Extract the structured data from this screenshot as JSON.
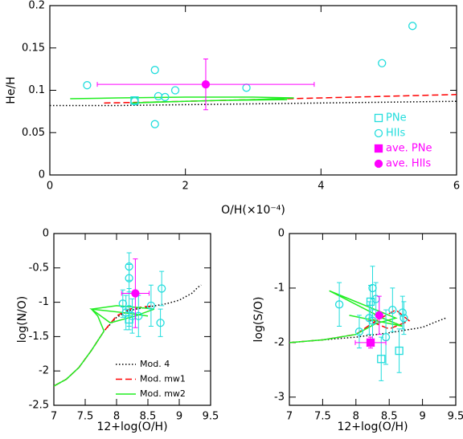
{
  "chart_data": [
    {
      "type": "scatter",
      "xlabel": "O/H(×10⁻⁴)",
      "ylabel": "He/H",
      "xlim": [
        0,
        6
      ],
      "ylim": [
        0,
        0.2
      ],
      "xticks": [
        0,
        2,
        4,
        6
      ],
      "yticks": [
        0,
        0.05,
        0.1,
        0.15,
        0.2
      ],
      "legend": "lower right",
      "series": [
        {
          "color": "#000000",
          "marker": "line",
          "dash": "dotted",
          "x": [
            0,
            1,
            2,
            3,
            4,
            5,
            6
          ],
          "y": [
            0.082,
            0.082,
            0.083,
            0.084,
            0.085,
            0.086,
            0.087
          ]
        },
        {
          "color": "#ff0000",
          "marker": "line",
          "dash": "dashed",
          "x": [
            0.8,
            1.5,
            2.5,
            3.5,
            4.5,
            5.5,
            6
          ],
          "y": [
            0.085,
            0.086,
            0.088,
            0.09,
            0.092,
            0.094,
            0.095
          ]
        },
        {
          "color": "#22ee22",
          "marker": "line",
          "dash": "solid",
          "x": [
            0.3,
            1,
            2,
            3,
            3.6,
            3,
            2,
            1.2,
            1.5,
            2.5,
            3.5
          ],
          "y": [
            0.09,
            0.091,
            0.092,
            0.092,
            0.091,
            0.089,
            0.087,
            0.085,
            0.086,
            0.088,
            0.089
          ]
        },
        {
          "name": "PNe",
          "color": "#22dddd",
          "marker": "square",
          "x": [
            1.25
          ],
          "y": [
            0.088
          ]
        },
        {
          "name": "HIIs",
          "color": "#22dddd",
          "marker": "circle",
          "x": [
            0.55,
            1.25,
            1.55,
            1.55,
            1.6,
            1.7,
            1.85,
            2.9,
            4.9,
            5.35
          ],
          "y": [
            0.106,
            0.087,
            0.124,
            0.06,
            0.093,
            0.092,
            0.1,
            0.103,
            0.132,
            0.176
          ]
        },
        {
          "name": "ave. PNe",
          "color": "#ff00ff",
          "marker": "filled-square",
          "x": [],
          "y": []
        },
        {
          "name": "ave. HIIs",
          "color": "#ff00ff",
          "marker": "filled-circle",
          "x": [
            2.3
          ],
          "y": [
            0.107
          ],
          "xerr": [
            1.6
          ],
          "yerr": [
            0.03
          ]
        }
      ]
    },
    {
      "type": "scatter",
      "xlabel": "12+log(O/H)",
      "ylabel": "log(N/O)",
      "xlim": [
        7,
        9.5
      ],
      "ylim": [
        -2.5,
        0
      ],
      "xticks": [
        7,
        7.5,
        8,
        8.5,
        9,
        9.5
      ],
      "yticks": [
        0,
        -0.5,
        -1,
        -1.5,
        -2,
        -2.5
      ],
      "legend": "lower right",
      "series": [
        {
          "name": "Mod. 4",
          "color": "#000000",
          "marker": "line",
          "dash": "dotted",
          "x": [
            7,
            7.2,
            7.4,
            7.6,
            7.8,
            8,
            8.2,
            8.5,
            8.8,
            9,
            9.2,
            9.3,
            9.35
          ],
          "y": [
            -2.22,
            -2.12,
            -1.95,
            -1.7,
            -1.42,
            -1.22,
            -1.12,
            -1.07,
            -1.02,
            -0.97,
            -0.87,
            -0.78,
            -0.75
          ]
        },
        {
          "name": "Mod. mw1",
          "color": "#ff0000",
          "marker": "line",
          "dash": "dashed",
          "x": [
            7,
            7.2,
            7.4,
            7.6,
            7.8,
            8,
            8.2,
            8.4,
            8.6
          ],
          "y": [
            -2.22,
            -2.12,
            -1.95,
            -1.7,
            -1.42,
            -1.2,
            -1.1,
            -1.07,
            -1.05
          ]
        },
        {
          "name": "Mod. mw2",
          "color": "#22ee22",
          "marker": "line",
          "dash": "solid",
          "x": [
            7,
            7.2,
            7.4,
            7.6,
            7.8,
            7.7,
            7.6,
            8,
            8.4,
            8.6,
            8.3,
            7.9,
            7.6,
            8.1,
            8.5
          ],
          "y": [
            -2.22,
            -2.12,
            -1.95,
            -1.7,
            -1.42,
            -1.2,
            -1.1,
            -1.05,
            -1.08,
            -1.1,
            -1.2,
            -1.3,
            -1.1,
            -1.15,
            -1.2
          ]
        },
        {
          "color": "#22dddd",
          "marker": "square",
          "x": [
            8.2
          ],
          "y": [
            -1.25
          ],
          "yerr": [
            0.1
          ]
        },
        {
          "color": "#22dddd",
          "marker": "circle",
          "x": [
            8.1,
            8.15,
            8.2,
            8.2,
            8.2,
            8.25,
            8.35,
            8.55,
            8.7,
            8.72
          ],
          "y": [
            -1.02,
            -1.15,
            -0.48,
            -0.65,
            -1.1,
            -1.2,
            -1.2,
            -1.05,
            -1.3,
            -0.8
          ],
          "yerr": [
            0.2,
            0.25,
            0.2,
            0.2,
            0.3,
            0.25,
            0.3,
            0.3,
            0.2,
            0.25
          ]
        },
        {
          "color": "#ff00ff",
          "marker": "filled-circle",
          "x": [
            8.3
          ],
          "y": [
            -0.87
          ],
          "xerr": [
            0.22
          ],
          "yerr": [
            0.5
          ]
        }
      ]
    },
    {
      "type": "scatter",
      "xlabel": "12+log(O/H)",
      "ylabel": "log(S/O)",
      "xlim": [
        7,
        9.5
      ],
      "ylim": [
        -3.15,
        0
      ],
      "xticks": [
        7,
        7.5,
        8,
        8.5,
        9,
        9.5
      ],
      "yticks": [
        0,
        -1,
        -2,
        -3
      ],
      "series": [
        {
          "color": "#000000",
          "marker": "line",
          "dash": "dotted",
          "x": [
            7,
            7.5,
            8,
            8.5,
            9,
            9.2,
            9.35
          ],
          "y": [
            -2,
            -1.95,
            -1.9,
            -1.82,
            -1.72,
            -1.62,
            -1.55
          ]
        },
        {
          "color": "#ff0000",
          "marker": "line",
          "dash": "dashed",
          "x": [
            7,
            7.5,
            8,
            8.3,
            8.6,
            8.8,
            8.5,
            8.2,
            8.4,
            8.7
          ],
          "y": [
            -2,
            -1.95,
            -1.85,
            -1.6,
            -1.4,
            -1.6,
            -1.75,
            -1.6,
            -1.55,
            -1.7
          ]
        },
        {
          "color": "#22ee22",
          "marker": "line",
          "dash": "solid",
          "x": [
            7,
            7.5,
            8,
            8.3,
            8.6,
            8.2,
            7.8,
            7.6,
            8,
            8.4,
            8.7,
            8.3,
            7.9
          ],
          "y": [
            -2,
            -1.95,
            -1.85,
            -1.65,
            -1.55,
            -1.35,
            -1.15,
            -1.05,
            -1.3,
            -1.55,
            -1.7,
            -1.6,
            -1.5
          ]
        },
        {
          "color": "#22dddd",
          "marker": "square",
          "x": [
            8.38,
            8.65,
            8.22
          ],
          "y": [
            -2.3,
            -2.15,
            -1.25
          ],
          "yerr": [
            0.4,
            0.4,
            0.3
          ]
        },
        {
          "color": "#22dddd",
          "marker": "circle",
          "x": [
            7.75,
            8.05,
            8.2,
            8.25,
            8.3,
            8.45,
            8.55,
            8.7,
            8.72,
            8.25
          ],
          "y": [
            -1.3,
            -1.8,
            -1.55,
            -1,
            -1.2,
            -1.9,
            -1.4,
            -1.45,
            -1.55,
            -1.6
          ],
          "yerr": [
            0.4,
            0.3,
            0.3,
            0.4,
            0.3,
            0.5,
            0.4,
            0.3,
            0.3,
            0.4
          ]
        },
        {
          "color": "#ff00ff",
          "marker": "filled-circle",
          "x": [
            8.35
          ],
          "y": [
            -1.5
          ],
          "yerr": [
            0.35
          ]
        },
        {
          "color": "#ff00ff",
          "marker": "filled-square",
          "x": [
            8.22
          ],
          "y": [
            -2
          ],
          "xerr": [
            0.23
          ],
          "yerr": [
            0.1
          ]
        }
      ]
    }
  ]
}
